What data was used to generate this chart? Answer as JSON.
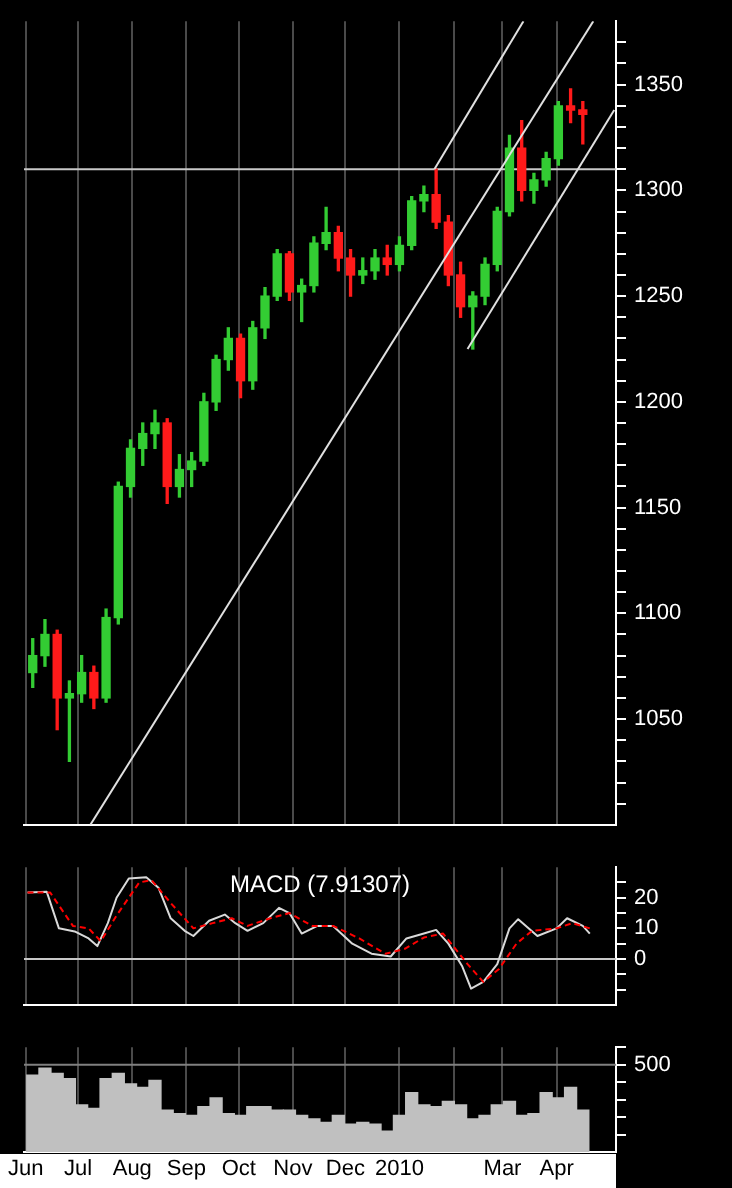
{
  "chart_data": [
    {
      "type": "candlestick",
      "x": [
        "2009-06-05",
        "2009-06-12",
        "2009-06-19",
        "2009-06-26",
        "2009-07-03",
        "2009-07-10",
        "2009-07-17",
        "2009-07-24",
        "2009-07-31",
        "2009-08-07",
        "2009-08-14",
        "2009-08-21",
        "2009-08-28",
        "2009-09-04",
        "2009-09-11",
        "2009-09-18",
        "2009-09-25",
        "2009-10-02",
        "2009-10-09",
        "2009-10-16",
        "2009-10-23",
        "2009-10-30",
        "2009-11-06",
        "2009-11-13",
        "2009-11-20",
        "2009-11-27",
        "2009-12-04",
        "2009-12-11",
        "2009-12-18",
        "2009-12-25",
        "2010-01-01",
        "2010-01-08",
        "2010-01-15",
        "2010-01-22",
        "2010-01-29",
        "2010-02-05",
        "2010-02-12",
        "2010-02-19",
        "2010-02-26",
        "2010-03-05",
        "2010-03-12",
        "2010-03-19",
        "2010-03-26",
        "2010-04-02",
        "2010-04-09",
        "2010-04-16"
      ],
      "ohlc": [
        [
          1072,
          1088,
          1065,
          1080
        ],
        [
          1080,
          1097,
          1075,
          1090
        ],
        [
          1090,
          1092,
          1045,
          1060
        ],
        [
          1060,
          1068,
          1030,
          1062
        ],
        [
          1062,
          1080,
          1058,
          1072
        ],
        [
          1072,
          1075,
          1055,
          1060
        ],
        [
          1060,
          1102,
          1058,
          1098
        ],
        [
          1098,
          1162,
          1095,
          1160
        ],
        [
          1160,
          1182,
          1155,
          1178
        ],
        [
          1178,
          1190,
          1170,
          1185
        ],
        [
          1185,
          1196,
          1178,
          1190
        ],
        [
          1190,
          1192,
          1152,
          1160
        ],
        [
          1160,
          1175,
          1155,
          1168
        ],
        [
          1168,
          1176,
          1160,
          1172
        ],
        [
          1172,
          1204,
          1170,
          1200
        ],
        [
          1200,
          1222,
          1196,
          1220
        ],
        [
          1220,
          1235,
          1215,
          1230
        ],
        [
          1230,
          1232,
          1202,
          1210
        ],
        [
          1210,
          1238,
          1206,
          1235
        ],
        [
          1235,
          1254,
          1230,
          1250
        ],
        [
          1250,
          1272,
          1248,
          1270
        ],
        [
          1270,
          1271,
          1248,
          1252
        ],
        [
          1252,
          1258,
          1238,
          1255
        ],
        [
          1255,
          1278,
          1252,
          1275
        ],
        [
          1275,
          1292,
          1272,
          1280
        ],
        [
          1280,
          1283,
          1262,
          1268
        ],
        [
          1268,
          1272,
          1250,
          1260
        ],
        [
          1260,
          1268,
          1256,
          1262
        ],
        [
          1262,
          1272,
          1258,
          1268
        ],
        [
          1268,
          1274,
          1260,
          1265
        ],
        [
          1265,
          1278,
          1262,
          1274
        ],
        [
          1274,
          1297,
          1272,
          1295
        ],
        [
          1295,
          1302,
          1290,
          1298
        ],
        [
          1298,
          1310,
          1282,
          1285
        ],
        [
          1285,
          1288,
          1255,
          1260
        ],
        [
          1260,
          1266,
          1240,
          1245
        ],
        [
          1245,
          1252,
          1225,
          1250
        ],
        [
          1250,
          1268,
          1246,
          1265
        ],
        [
          1265,
          1292,
          1262,
          1290
        ],
        [
          1290,
          1326,
          1288,
          1320
        ],
        [
          1320,
          1333,
          1295,
          1300
        ],
        [
          1300,
          1308,
          1294,
          1305
        ],
        [
          1305,
          1318,
          1302,
          1315
        ],
        [
          1315,
          1342,
          1312,
          1340
        ],
        [
          1340,
          1348,
          1332,
          1338
        ],
        [
          1338,
          1342,
          1322,
          1336
        ]
      ],
      "series": [
        {
          "type": "line",
          "x": [
            "2009-07-08",
            "2010-04-22"
          ],
          "values": [
            1000,
            1380
          ],
          "color": "#e0e0e0"
        },
        {
          "type": "line",
          "x": [
            "2010-01-21",
            "2010-03-13"
          ],
          "values": [
            1310,
            1380
          ],
          "color": "#e0e0e0"
        },
        {
          "type": "line",
          "x": [
            "2010-02-09",
            "2010-05-04"
          ],
          "values": [
            1225,
            1338
          ],
          "color": "#e0e0e0"
        }
      ],
      "ref_lines": [
        {
          "axis": "y",
          "value": 1310,
          "color": "#c8c8c8"
        }
      ],
      "xlim": [
        "2009-05-31",
        "2010-05-05"
      ],
      "xticks": [
        {
          "value": "2009-06-01",
          "label": null
        },
        {
          "value": "2009-07-01",
          "label": null
        },
        {
          "value": "2009-08-01",
          "label": null
        },
        {
          "value": "2009-09-01",
          "label": null
        },
        {
          "value": "2009-10-01",
          "label": null
        },
        {
          "value": "2009-11-01",
          "label": null
        },
        {
          "value": "2009-12-01",
          "label": null
        },
        {
          "value": "2010-01-01",
          "label": null
        },
        {
          "value": "2010-02-01",
          "label": null
        },
        {
          "value": "2010-03-01",
          "label": null
        },
        {
          "value": "2010-04-01",
          "label": null
        }
      ],
      "ylim": [
        1000,
        1380
      ],
      "yticks": [
        {
          "value": 1010,
          "label": null
        },
        {
          "value": 1020,
          "label": null
        },
        {
          "value": 1030,
          "label": null
        },
        {
          "value": 1040,
          "label": null
        },
        1050,
        {
          "value": 1060,
          "label": null
        },
        {
          "value": 1070,
          "label": null
        },
        {
          "value": 1080,
          "label": null
        },
        {
          "value": 1090,
          "label": null
        },
        1100,
        {
          "value": 1110,
          "label": null
        },
        {
          "value": 1120,
          "label": null
        },
        {
          "value": 1130,
          "label": null
        },
        {
          "value": 1140,
          "label": null
        },
        1150,
        {
          "value": 1160,
          "label": null
        },
        {
          "value": 1170,
          "label": null
        },
        {
          "value": 1180,
          "label": null
        },
        {
          "value": 1190,
          "label": null
        },
        1200,
        {
          "value": 1210,
          "label": null
        },
        {
          "value": 1220,
          "label": null
        },
        {
          "value": 1230,
          "label": null
        },
        {
          "value": 1240,
          "label": null
        },
        1250,
        {
          "value": 1260,
          "label": null
        },
        {
          "value": 1270,
          "label": null
        },
        {
          "value": 1280,
          "label": null
        },
        {
          "value": 1290,
          "label": null
        },
        1300,
        {
          "value": 1310,
          "label": null
        },
        {
          "value": 1320,
          "label": null
        },
        {
          "value": 1330,
          "label": null
        },
        {
          "value": 1340,
          "label": null
        },
        1350,
        {
          "value": 1360,
          "label": null
        },
        {
          "value": 1370,
          "label": null
        }
      ],
      "grid": "x",
      "tick_labels": "y"
    },
    {
      "type": "line",
      "title": "MACD (7.91307)",
      "series": [
        {
          "x": [
            "2009-06-02",
            "2009-06-13",
            "2009-06-20",
            "2009-06-29",
            "2009-07-07",
            "2009-07-12",
            "2009-07-18",
            "2009-07-23",
            "2009-07-30",
            "2009-08-09",
            "2009-08-16",
            "2009-08-23",
            "2009-08-31",
            "2009-09-05",
            "2009-09-14",
            "2009-09-23",
            "2009-09-29",
            "2009-10-06",
            "2009-10-15",
            "2009-10-24",
            "2009-10-30",
            "2009-11-06",
            "2009-11-15",
            "2009-11-24",
            "2009-12-05",
            "2009-12-16",
            "2009-12-27",
            "2010-01-05",
            "2010-01-15",
            "2010-01-22",
            "2010-01-29",
            "2010-02-06",
            "2010-02-11",
            "2010-02-18",
            "2010-02-26",
            "2010-03-05",
            "2010-03-10",
            "2010-03-21",
            "2010-04-01",
            "2010-04-07",
            "2010-04-16",
            "2010-04-20"
          ],
          "values": [
            21.7,
            22,
            10,
            9,
            6.7,
            4.2,
            11.7,
            20,
            26.3,
            26.7,
            23.3,
            13.3,
            9.2,
            7.5,
            12.5,
            14.5,
            11.7,
            9.2,
            11.7,
            16.7,
            15,
            8.3,
            10.8,
            10.8,
            5,
            1.7,
            0.8,
            6.7,
            8.3,
            9.5,
            5,
            -2.5,
            -9.7,
            -7.5,
            -1.7,
            10,
            13,
            7.5,
            10,
            13.3,
            10.8,
            8.3
          ],
          "color": "#d9d9d9"
        },
        {
          "x": [
            "2009-06-02",
            "2009-06-15",
            "2009-06-28",
            "2009-07-07",
            "2009-07-14",
            "2009-07-23",
            "2009-08-05",
            "2009-08-12",
            "2009-08-23",
            "2009-09-05",
            "2009-09-16",
            "2009-09-27",
            "2009-10-06",
            "2009-10-19",
            "2009-10-30",
            "2009-11-12",
            "2009-11-24",
            "2009-12-09",
            "2009-12-24",
            "2010-01-04",
            "2010-01-15",
            "2010-01-26",
            "2010-02-09",
            "2010-02-18",
            "2010-02-27",
            "2010-03-09",
            "2010-03-18",
            "2010-04-01",
            "2010-04-10",
            "2010-04-20"
          ],
          "values": [
            21.7,
            21.7,
            10.8,
            10,
            5.8,
            14.2,
            25,
            25.8,
            18.3,
            10,
            11.7,
            13.3,
            10.8,
            13.3,
            15,
            10.8,
            10.8,
            6.7,
            1.7,
            3.3,
            7,
            8.3,
            -1.7,
            -7.5,
            -3.3,
            5,
            9.2,
            10,
            11.7,
            10
          ],
          "color": "#ff0000",
          "line_style": "dashed"
        }
      ],
      "ref_lines": [
        {
          "axis": "y",
          "value": 0,
          "color": "#c8c8c8"
        }
      ],
      "xlim": [
        "2009-05-31",
        "2010-05-05"
      ],
      "xticks": [
        {
          "value": "2009-06-01",
          "label": null
        },
        {
          "value": "2009-07-01",
          "label": null
        },
        {
          "value": "2009-08-01",
          "label": null
        },
        {
          "value": "2009-09-01",
          "label": null
        },
        {
          "value": "2009-10-01",
          "label": null
        },
        {
          "value": "2009-11-01",
          "label": null
        },
        {
          "value": "2009-12-01",
          "label": null
        },
        {
          "value": "2010-01-01",
          "label": null
        },
        {
          "value": "2010-02-01",
          "label": null
        },
        {
          "value": "2010-03-01",
          "label": null
        },
        {
          "value": "2010-04-01",
          "label": null
        }
      ],
      "ylim": [
        -15,
        30
      ],
      "yticks": [
        {
          "value": -10,
          "label": null
        },
        {
          "value": -5,
          "label": null
        },
        0,
        {
          "value": 5,
          "label": null
        },
        10,
        {
          "value": 15,
          "label": null
        },
        20,
        {
          "value": 25,
          "label": null
        }
      ],
      "grid": "x",
      "tick_labels": "y"
    },
    {
      "type": "bar",
      "x": [
        "2009-06-05",
        "2009-06-12",
        "2009-06-19",
        "2009-06-26",
        "2009-07-03",
        "2009-07-10",
        "2009-07-17",
        "2009-07-24",
        "2009-07-31",
        "2009-08-07",
        "2009-08-14",
        "2009-08-21",
        "2009-08-28",
        "2009-09-04",
        "2009-09-11",
        "2009-09-18",
        "2009-09-25",
        "2009-10-02",
        "2009-10-09",
        "2009-10-16",
        "2009-10-23",
        "2009-10-30",
        "2009-11-06",
        "2009-11-13",
        "2009-11-20",
        "2009-11-27",
        "2009-12-04",
        "2009-12-11",
        "2009-12-18",
        "2009-12-25",
        "2010-01-01",
        "2010-01-08",
        "2010-01-15",
        "2010-01-22",
        "2010-01-29",
        "2010-02-05",
        "2010-02-12",
        "2010-02-19",
        "2010-02-26",
        "2010-03-05",
        "2010-03-12",
        "2010-03-19",
        "2010-03-26",
        "2010-04-02",
        "2010-04-09",
        "2010-04-16"
      ],
      "values": [
        440,
        480,
        450,
        420,
        270,
        250,
        420,
        450,
        390,
        370,
        410,
        240,
        220,
        210,
        260,
        310,
        220,
        210,
        260,
        260,
        240,
        240,
        210,
        190,
        170,
        210,
        160,
        170,
        160,
        120,
        210,
        340,
        270,
        260,
        290,
        270,
        190,
        210,
        270,
        290,
        210,
        220,
        340,
        310,
        370,
        240
      ],
      "color": "#c0c0c0",
      "ref_lines": [
        {
          "axis": "y",
          "value": 500,
          "color": "#808080"
        }
      ],
      "xlim": [
        "2009-05-31",
        "2010-05-05"
      ],
      "xticks": [
        {
          "value": "2009-06-01",
          "label": "Jun"
        },
        {
          "value": "2009-07-01",
          "label": "Jul"
        },
        {
          "value": "2009-08-01",
          "label": "Aug"
        },
        {
          "value": "2009-09-01",
          "label": "Sep"
        },
        {
          "value": "2009-10-01",
          "label": "Oct"
        },
        {
          "value": "2009-11-01",
          "label": "Nov"
        },
        {
          "value": "2009-12-01",
          "label": "Dec"
        },
        {
          "value": "2010-01-01",
          "label": "2010"
        },
        {
          "value": "2010-02-01",
          "label": null
        },
        {
          "value": "2010-03-01",
          "label": "Mar"
        },
        {
          "value": "2010-04-01",
          "label": "Apr"
        }
      ],
      "ylim": [
        0,
        600
      ],
      "yticks": [
        {
          "value": 100,
          "label": null
        },
        {
          "value": 200,
          "label": null
        },
        {
          "value": 300,
          "label": null
        },
        {
          "value": 400,
          "label": null
        },
        500,
        {
          "value": 600,
          "label": null
        }
      ],
      "grid": "x"
    }
  ]
}
